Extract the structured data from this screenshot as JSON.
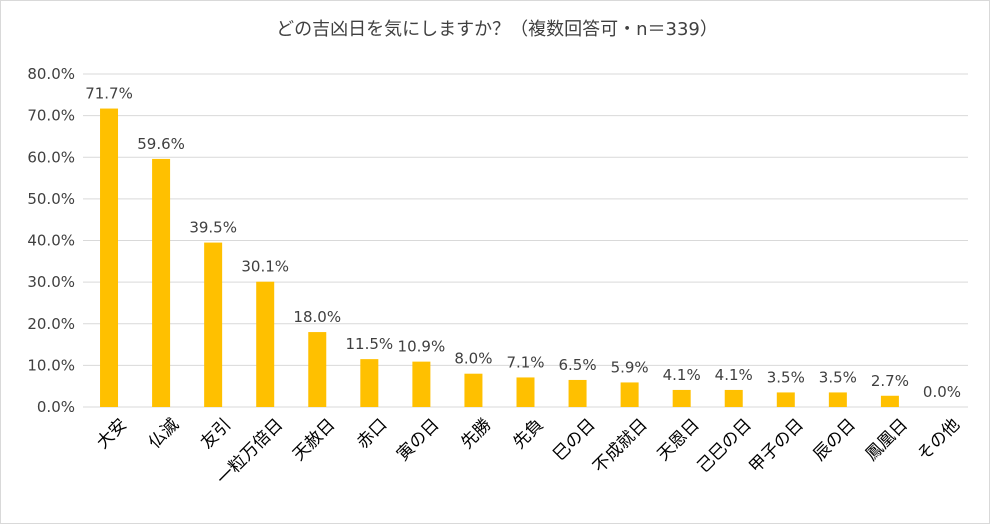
{
  "chart_data": {
    "type": "bar",
    "title": "どの吉凶日を気にしますか？（複数回答可・n＝339）",
    "categories": [
      "大安",
      "仏滅",
      "友引",
      "一粒万倍日",
      "天赦日",
      "赤口",
      "寅の日",
      "先勝",
      "先負",
      "巳の日",
      "不成就日",
      "天恩日",
      "己巳の日",
      "甲子の日",
      "辰の日",
      "鳳凰日",
      "その他"
    ],
    "values": [
      71.7,
      59.6,
      39.5,
      30.1,
      18.0,
      11.5,
      10.9,
      8.0,
      7.1,
      6.5,
      5.9,
      4.1,
      4.1,
      3.5,
      3.5,
      2.7,
      0.0
    ],
    "data_labels": [
      "71.7%",
      "59.6%",
      "39.5%",
      "30.1%",
      "18.0%",
      "11.5%",
      "10.9%",
      "8.0%",
      "7.1%",
      "6.5%",
      "5.9%",
      "4.1%",
      "4.1%",
      "3.5%",
      "3.5%",
      "2.7%",
      "0.0%"
    ],
    "yticks": [
      "0.0%",
      "10.0%",
      "20.0%",
      "30.0%",
      "40.0%",
      "50.0%",
      "60.0%",
      "70.0%",
      "80.0%"
    ],
    "ylim": [
      0,
      80
    ],
    "grid": true,
    "xlabel": "",
    "ylabel": "",
    "bar_color": "#FFC000"
  }
}
